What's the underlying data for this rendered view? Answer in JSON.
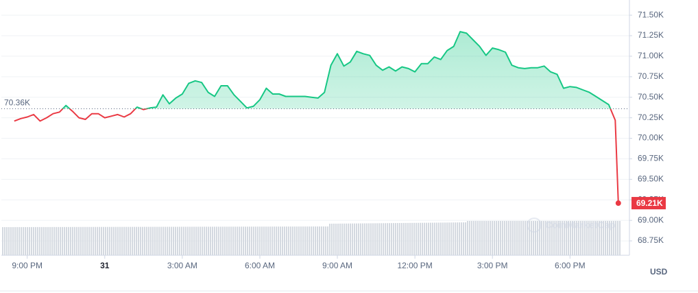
{
  "chart_data": {
    "type": "line",
    "x": [
      20.5,
      20.75,
      21,
      21.25,
      21.5,
      21.75,
      22,
      22.25,
      22.5,
      22.75,
      23,
      23.25,
      23.5,
      23.75,
      24,
      24.25,
      24.5,
      24.75,
      25,
      25.25,
      25.5,
      25.75,
      26,
      26.25,
      26.5,
      26.75,
      27,
      27.25,
      27.5,
      27.75,
      28,
      28.25,
      28.5,
      28.75,
      29,
      29.25,
      29.5,
      29.75,
      30,
      30.25,
      30.5,
      30.75,
      31,
      31.25,
      31.5,
      31.75,
      32,
      32.25,
      32.5,
      32.75,
      33,
      33.25,
      33.5,
      33.75,
      34,
      34.25,
      34.5,
      34.75,
      35,
      35.25,
      35.5,
      35.75,
      36,
      36.25,
      36.5,
      36.75,
      37,
      37.25,
      37.5,
      37.75,
      38,
      38.25,
      38.5,
      38.75,
      39,
      39.25,
      39.5,
      39.75,
      40,
      40.25,
      40.5,
      40.75,
      41,
      41.25,
      41.5,
      41.75,
      42,
      42.25,
      42.5,
      42.75,
      43,
      43.25,
      43.5,
      43.75,
      43.87
    ],
    "values": [
      70210,
      70240,
      70260,
      70290,
      70210,
      70250,
      70300,
      70320,
      70400,
      70330,
      70250,
      70230,
      70300,
      70300,
      70250,
      70270,
      70290,
      70260,
      70300,
      70380,
      70350,
      70370,
      70380,
      70530,
      70420,
      70490,
      70540,
      70670,
      70700,
      70680,
      70560,
      70510,
      70640,
      70640,
      70530,
      70450,
      70370,
      70390,
      70470,
      70610,
      70540,
      70540,
      70510,
      70510,
      70510,
      70510,
      70500,
      70490,
      70560,
      70890,
      71030,
      70880,
      70930,
      71060,
      71030,
      71010,
      70890,
      70830,
      70870,
      70820,
      70870,
      70850,
      70810,
      70910,
      70910,
      70990,
      70960,
      71070,
      71120,
      71300,
      71280,
      71200,
      71120,
      71010,
      71100,
      71080,
      71050,
      70890,
      70860,
      70850,
      70860,
      70860,
      70880,
      70810,
      70780,
      70610,
      70630,
      70620,
      70590,
      70560,
      70510,
      70460,
      70410,
      70220,
      69210
    ],
    "color": "#16c784",
    "below_color": "#ea3943",
    "baseline": {
      "value": 70360,
      "label": "70.36K"
    },
    "last_value_label": "69.21K",
    "xlim": [
      20,
      44.3
    ],
    "xticks": [
      {
        "value": 21,
        "label": "9:00 PM"
      },
      {
        "value": 24,
        "label": "31"
      },
      {
        "value": 27,
        "label": "3:00 AM"
      },
      {
        "value": 30,
        "label": "6:00 AM"
      },
      {
        "value": 33,
        "label": "9:00 AM"
      },
      {
        "value": 36,
        "label": "12:00 PM"
      },
      {
        "value": 39,
        "label": "3:00 PM"
      },
      {
        "value": 42,
        "label": "6:00 PM"
      }
    ],
    "ylim": [
      68575,
      71685
    ],
    "yticks": [
      {
        "value": 71500,
        "label": "71.50K"
      },
      {
        "value": 71250,
        "label": "71.25K"
      },
      {
        "value": 71000,
        "label": "71.00K"
      },
      {
        "value": 70750,
        "label": "70.75K"
      },
      {
        "value": 70500,
        "label": "70.50K"
      },
      {
        "value": 70250,
        "label": "70.25K"
      },
      {
        "value": 70000,
        "label": "70.00K"
      },
      {
        "value": 69750,
        "label": "69.75K"
      },
      {
        "value": 69500,
        "label": "69.50K"
      },
      {
        "value": 69250,
        "label": "69.25K"
      },
      {
        "value": 69000,
        "label": "69.00K"
      },
      {
        "value": 68750,
        "label": "68.75K"
      }
    ],
    "currency": "USD",
    "watermark": "CoinMarketCap",
    "grid": true
  }
}
